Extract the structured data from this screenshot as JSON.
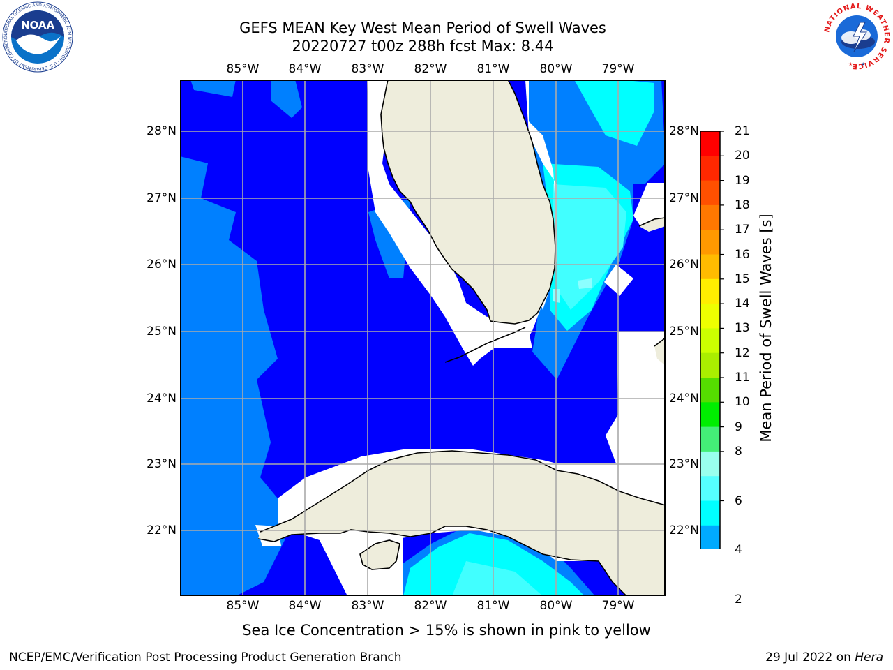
{
  "header": {
    "title_line1": "GEFS MEAN Key West Mean Period of Swell Waves",
    "title_line2": "20220727 t00z 288h fcst   Max: 8.44"
  },
  "map": {
    "lon_labels": [
      "85°W",
      "84°W",
      "83°W",
      "82°W",
      "81°W",
      "80°W",
      "79°W"
    ],
    "lat_labels": [
      "28°N",
      "27°N",
      "26°N",
      "25°N",
      "24°N",
      "23°N",
      "22°N"
    ],
    "lon_range": [
      -86.0,
      -78.3
    ],
    "lat_range": [
      21.1,
      28.8
    ],
    "colors": {
      "land": "#eeeddc",
      "no_data": "#ffffff",
      "level_2_4": "#0000ff",
      "level_4_5": "#0080ff",
      "level_5_6": "#00ffff",
      "level_6_7": "#41ffff",
      "level_7_8": "#8cffff",
      "coast": "#000000",
      "grid": "#aaaaaa"
    }
  },
  "colorbar": {
    "title": "Mean Period of Swell Waves [s]",
    "ticks": [
      "21",
      "20",
      "19",
      "18",
      "17",
      "16",
      "15",
      "14",
      "13",
      "12",
      "11",
      "10",
      "9",
      "8",
      "6",
      "4",
      "2"
    ],
    "colors": [
      "#ff0000",
      "#ff2800",
      "#ff5000",
      "#ff7800",
      "#ff9900",
      "#ffbb00",
      "#ffee00",
      "#eeff00",
      "#ccff00",
      "#aaee00",
      "#55dd00",
      "#00ee00",
      "#44ee77",
      "#99ffee",
      "#55ffff",
      "#00ffff",
      "#00aaff",
      "#0055ff",
      "#0000ff"
    ]
  },
  "caption": "Sea Ice Concentration > 15% is shown in pink to yellow",
  "footer": {
    "left": "NCEP/EMC/Verification Post Processing Product Generation Branch",
    "date": "29 Jul 2022 on",
    "host": "Hera"
  },
  "logos": {
    "noaa_text": "NOAA",
    "noaa_ring": "NATIONAL OCEANIC AND ATMOSPHERIC ADMINISTRATION · U.S. DEPARTMENT OF COMMERCE",
    "nws_ring": "NATIONAL WEATHER SERVICE"
  }
}
